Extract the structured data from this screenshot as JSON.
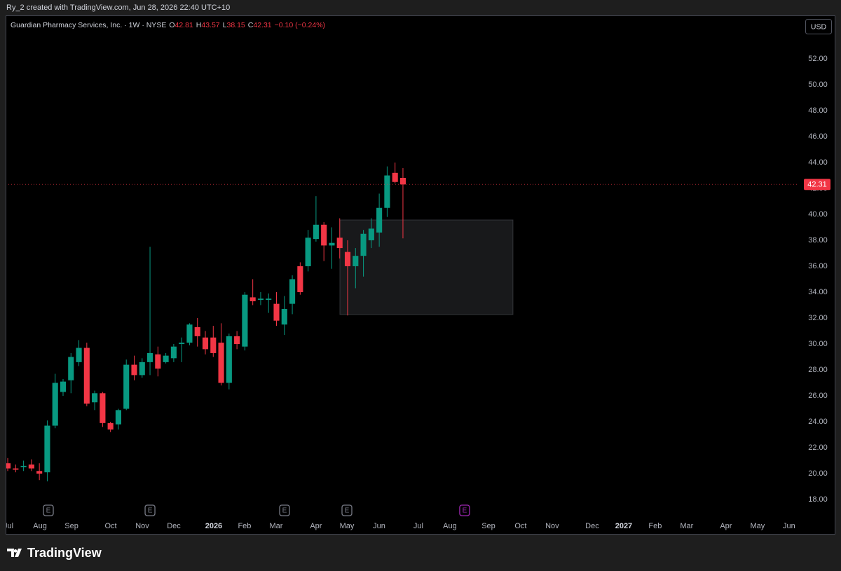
{
  "header": {
    "creator_line": "Ry_2 created with TradingView.com, Jun 28, 2026 22:40 UTC+10",
    "currency": "USD"
  },
  "chart_data": {
    "type": "candlestick",
    "symbol": "Guardian Pharmacy Services, Inc. · 1W · NYSE",
    "ohlc_labels": [
      "O",
      "H",
      "L",
      "C"
    ],
    "change": "−0.10 (−0.24%)",
    "up_color": "#089981",
    "down_color": "#f23645",
    "categories": [
      null,
      null,
      null,
      null,
      null,
      null,
      null,
      null,
      null,
      null,
      null,
      null,
      null,
      null,
      null,
      null,
      null,
      null,
      null,
      null,
      null,
      null,
      null,
      null,
      null,
      null,
      null,
      null,
      null,
      null,
      null,
      null,
      null,
      null,
      null,
      null,
      null,
      null,
      null,
      null,
      null,
      null,
      null,
      null,
      null,
      null,
      null,
      null,
      null,
      null,
      null
    ],
    "open": [
      20.8,
      20.4,
      20.5,
      20.7,
      20.2,
      20.1,
      23.7,
      26.3,
      27.2,
      28.6,
      29.7,
      25.5,
      26.2,
      23.9,
      23.8,
      25.0,
      28.4,
      27.6,
      28.6,
      29.2,
      28.6,
      28.9,
      30.0,
      30.1,
      31.3,
      30.5,
      30.5,
      30.1,
      27.0,
      30.6,
      29.8,
      33.6,
      33.4,
      33.4,
      33.1,
      31.5,
      33.1,
      36.0,
      36.0,
      38.1,
      39.2,
      37.6,
      38.2,
      37.1,
      36.0,
      36.8,
      38.0,
      38.6,
      40.5,
      43.2,
      42.81
    ],
    "high": [
      21.2,
      20.7,
      21.0,
      21.1,
      20.8,
      24.1,
      27.7,
      27.3,
      29.3,
      30.3,
      30.1,
      26.4,
      26.3,
      24.0,
      25.0,
      28.8,
      29.1,
      28.9,
      37.5,
      29.8,
      29.3,
      30.0,
      30.5,
      31.6,
      32.0,
      31.0,
      31.4,
      31.6,
      30.8,
      31.0,
      34.0,
      35.0,
      34.0,
      33.9,
      34.0,
      33.7,
      35.3,
      36.3,
      38.8,
      41.4,
      39.4,
      39.0,
      39.7,
      38.0,
      37.4,
      38.8,
      39.7,
      41.6,
      43.7,
      44.0,
      43.57
    ],
    "low": [
      20.2,
      20.1,
      20.2,
      20.2,
      19.5,
      19.4,
      23.5,
      26.0,
      26.2,
      28.3,
      25.2,
      24.9,
      23.6,
      23.2,
      23.4,
      24.9,
      27.2,
      27.4,
      27.6,
      27.5,
      28.5,
      28.6,
      28.6,
      29.9,
      29.8,
      29.2,
      29.0,
      26.8,
      26.5,
      29.6,
      29.5,
      33.0,
      33.0,
      32.4,
      31.4,
      30.7,
      32.3,
      33.8,
      35.6,
      37.9,
      36.4,
      35.8,
      36.6,
      32.2,
      34.3,
      35.2,
      37.4,
      37.5,
      39.8,
      42.4,
      38.15
    ],
    "close": [
      20.4,
      20.3,
      20.6,
      20.4,
      20.0,
      23.7,
      27.0,
      27.1,
      29.0,
      29.7,
      25.4,
      26.2,
      23.9,
      23.4,
      24.9,
      28.4,
      27.6,
      28.6,
      29.3,
      28.1,
      29.1,
      29.8,
      30.1,
      31.5,
      30.6,
      29.6,
      29.3,
      27.0,
      30.6,
      30.0,
      33.8,
      33.3,
      33.5,
      33.5,
      31.8,
      32.7,
      35.0,
      34.0,
      38.2,
      39.2,
      37.6,
      37.8,
      37.4,
      36.0,
      36.8,
      38.5,
      38.9,
      40.5,
      43.0,
      42.5,
      42.31
    ],
    "xlim": [
      -0.27,
      100.1
    ],
    "xticks": [
      {
        "value": 0.09,
        "label": "Jul"
      },
      {
        "value": 4.08,
        "label": "Aug"
      },
      {
        "value": 8.07,
        "label": "Sep"
      },
      {
        "value": 13.03,
        "label": "Oct"
      },
      {
        "value": 17.02,
        "label": "Nov"
      },
      {
        "value": 21.01,
        "label": "Dec"
      },
      {
        "value": 26.06,
        "label": "2026"
      },
      {
        "value": 29.96,
        "label": "Feb"
      },
      {
        "value": 33.95,
        "label": "Mar"
      },
      {
        "value": 39.0,
        "label": "Apr"
      },
      {
        "value": 42.91,
        "label": "May"
      },
      {
        "value": 46.99,
        "label": "Jun"
      },
      {
        "value": 51.95,
        "label": "Jul"
      },
      {
        "value": 55.94,
        "label": "Aug"
      },
      {
        "value": 60.82,
        "label": "Sep"
      },
      {
        "value": 64.89,
        "label": "Oct"
      },
      {
        "value": 68.88,
        "label": "Nov"
      },
      {
        "value": 73.94,
        "label": "Dec"
      },
      {
        "value": 77.93,
        "label": "2027"
      },
      {
        "value": 81.91,
        "label": "Feb"
      },
      {
        "value": 85.9,
        "label": "Mar"
      },
      {
        "value": 90.87,
        "label": "Apr"
      },
      {
        "value": 94.86,
        "label": "May"
      },
      {
        "value": 98.85,
        "label": "Jun"
      }
    ],
    "ylim": [
      16.54,
      55.35
    ],
    "yticks": [
      {
        "value": 18,
        "label": "18.00"
      },
      {
        "value": 20,
        "label": "20.00"
      },
      {
        "value": 22,
        "label": "22.00"
      },
      {
        "value": 24,
        "label": "24.00"
      },
      {
        "value": 26,
        "label": "26.00"
      },
      {
        "value": 28,
        "label": "28.00"
      },
      {
        "value": 30,
        "label": "30.00"
      },
      {
        "value": 32,
        "label": "32.00"
      },
      {
        "value": 34,
        "label": "34.00"
      },
      {
        "value": 36,
        "label": "36.00"
      },
      {
        "value": 38,
        "label": "38.00"
      },
      {
        "value": 40,
        "label": "40.00"
      },
      {
        "value": 42,
        "label": "42.00"
      },
      {
        "value": 44,
        "label": "44.00"
      },
      {
        "value": 46,
        "label": "46.00"
      },
      {
        "value": 48,
        "label": "48.00"
      },
      {
        "value": 50,
        "label": "50.00"
      },
      {
        "value": 52,
        "label": "52.00"
      }
    ],
    "earnings": [
      {
        "x": 5.14,
        "label": "E"
      },
      {
        "x": 18.0,
        "label": "E"
      },
      {
        "x": 35.02,
        "label": "E"
      },
      {
        "x": 42.91,
        "label": "E"
      },
      {
        "x": 57.8,
        "label": "E",
        "color": "#9c27b0"
      }
    ],
    "rectangle": {
      "x": [
        42.02,
        63.92
      ],
      "y": [
        32.27,
        39.57
      ]
    }
  },
  "footer": {
    "brand": "TradingView"
  }
}
